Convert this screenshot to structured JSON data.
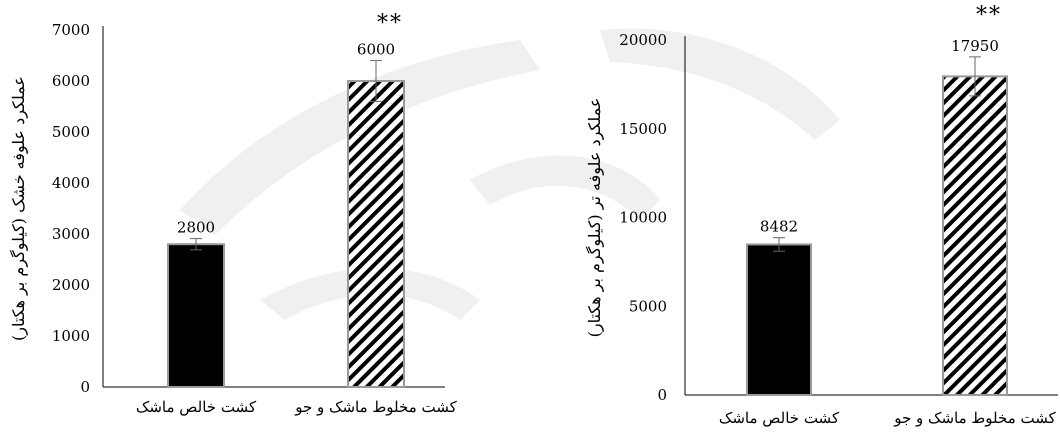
{
  "chart_data": [
    {
      "type": "bar",
      "ylabel": "عملکرد علوفه خشک (کیلوگرم بر هکتار)",
      "ylim": [
        0,
        7000
      ],
      "yticks": [
        "0",
        "1000",
        "2000",
        "3000",
        "4000",
        "5000",
        "6000",
        "7000"
      ],
      "categories": [
        "کشت خالص ماشک",
        "کشت مخلوط ماشک و جو"
      ],
      "values": [
        2800,
        6000
      ],
      "value_labels": [
        "2800",
        "6000"
      ],
      "error": [
        110,
        400
      ],
      "fills": [
        "solid",
        "hatched"
      ],
      "significance": "**",
      "grid": false
    },
    {
      "type": "bar",
      "ylabel": "عملکرد علوفه تر (کیلوگرم بر هکتار)",
      "ylim": [
        0,
        20000
      ],
      "yticks": [
        "0",
        "5000",
        "10000",
        "15000",
        "20000"
      ],
      "categories": [
        "کشت خالص ماشک",
        "کشت مخلوط ماشک و جو"
      ],
      "values": [
        8482,
        17950
      ],
      "value_labels": [
        "8482",
        "17950"
      ],
      "error": [
        380,
        1100
      ],
      "fills": [
        "solid",
        "hatched"
      ],
      "significance": "**",
      "grid": false
    }
  ],
  "colors": {
    "bar_fill": "#000000",
    "hatch": "#000000",
    "axis": "#000000",
    "watermark": "#e0e0e0"
  }
}
